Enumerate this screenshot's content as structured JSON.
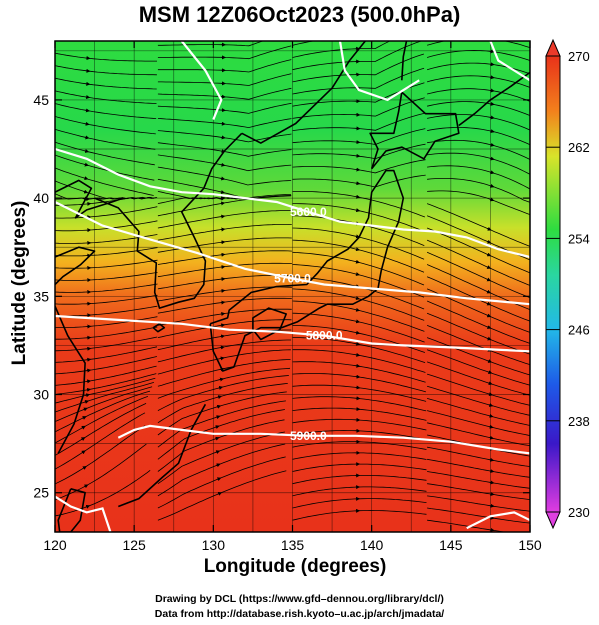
{
  "title": "MSM 12Z06Oct2023 (500.0hPa)",
  "x_axis": {
    "label": "Longitude (degrees)",
    "range": [
      120,
      150
    ],
    "ticks": [
      "120",
      "125",
      "130",
      "135",
      "140",
      "145",
      "150"
    ]
  },
  "y_axis": {
    "label": "Latitude  (degrees)",
    "range": [
      23,
      48
    ],
    "ticks": [
      "25",
      "30",
      "35",
      "40",
      "45"
    ]
  },
  "colorbar": {
    "range": [
      230,
      270
    ],
    "ticks": [
      "270",
      "262",
      "254",
      "246",
      "238",
      "230"
    ]
  },
  "contours": [
    {
      "label": "5600.0",
      "points": [
        [
          120,
          42.5
        ],
        [
          122,
          42.0
        ],
        [
          124,
          41.2
        ],
        [
          126,
          40.6
        ],
        [
          128,
          40.3
        ],
        [
          130,
          40.2
        ],
        [
          132,
          40.0
        ],
        [
          134,
          39.8
        ],
        [
          136,
          39.3
        ],
        [
          138,
          38.8
        ],
        [
          140,
          38.6
        ],
        [
          142,
          38.4
        ],
        [
          144,
          38.3
        ],
        [
          146,
          38.0
        ],
        [
          148,
          37.4
        ],
        [
          150,
          37.0
        ]
      ]
    },
    {
      "label": "5700.0",
      "points": [
        [
          120,
          39.8
        ],
        [
          123,
          38.6
        ],
        [
          126,
          37.9
        ],
        [
          129,
          37.2
        ],
        [
          132,
          36.4
        ],
        [
          135,
          35.9
        ],
        [
          137,
          35.6
        ],
        [
          140,
          35.4
        ],
        [
          143,
          35.2
        ],
        [
          146,
          34.9
        ],
        [
          150,
          34.6
        ]
      ]
    },
    {
      "label": "5800.0",
      "points": [
        [
          120,
          34.0
        ],
        [
          124,
          33.8
        ],
        [
          128,
          33.6
        ],
        [
          131,
          33.3
        ],
        [
          134,
          33.2
        ],
        [
          137,
          33.0
        ],
        [
          140,
          32.6
        ],
        [
          142,
          32.5
        ],
        [
          145,
          32.4
        ],
        [
          150,
          32.2
        ]
      ]
    },
    {
      "label": "5900.0",
      "points": [
        [
          124,
          27.8
        ],
        [
          125,
          28.2
        ],
        [
          126,
          28.4
        ],
        [
          128,
          28.2
        ],
        [
          130,
          28.0
        ],
        [
          133,
          28.0
        ],
        [
          136,
          27.9
        ],
        [
          139,
          27.9
        ],
        [
          142,
          27.8
        ],
        [
          145,
          27.6
        ],
        [
          148,
          27.2
        ],
        [
          150,
          27.0
        ]
      ]
    }
  ],
  "contours_secondary": [
    {
      "points": [
        [
          128,
          48
        ],
        [
          129.5,
          46.5
        ],
        [
          130.5,
          45.0
        ],
        [
          130,
          44.0
        ]
      ]
    },
    {
      "points": [
        [
          138,
          48
        ],
        [
          138.3,
          46.5
        ],
        [
          139.2,
          45.5
        ],
        [
          141,
          45.0
        ],
        [
          143,
          46.0
        ]
      ]
    },
    {
      "points": [
        [
          147.5,
          48
        ],
        [
          148.0,
          47.0
        ],
        [
          149.0,
          46.5
        ],
        [
          150,
          46.0
        ]
      ]
    },
    {
      "points": [
        [
          120,
          24.8
        ],
        [
          121.0,
          24.3
        ],
        [
          122.0,
          24.0
        ],
        [
          123.0,
          24.2
        ],
        [
          123.5,
          23
        ]
      ]
    },
    {
      "points": [
        [
          146,
          23.2
        ],
        [
          147.5,
          23.8
        ],
        [
          149,
          24.0
        ],
        [
          150,
          23.6
        ]
      ]
    }
  ],
  "coast": [
    {
      "name": "korea",
      "points": [
        [
          122.5,
          40.0
        ],
        [
          124.0,
          39.5
        ],
        [
          125.3,
          38.3
        ],
        [
          125.2,
          37.3
        ],
        [
          126.4,
          36.7
        ],
        [
          126.3,
          35.2
        ],
        [
          126.6,
          34.4
        ],
        [
          127.8,
          34.7
        ],
        [
          128.8,
          34.9
        ],
        [
          129.4,
          35.6
        ],
        [
          129.5,
          36.8
        ],
        [
          128.8,
          38.0
        ],
        [
          128.0,
          39.3
        ],
        [
          129.4,
          40.5
        ],
        [
          129.9,
          41.5
        ],
        [
          130.7,
          42.4
        ],
        [
          131.8,
          43.3
        ]
      ]
    },
    {
      "name": "china-coast",
      "points": [
        [
          120.0,
          34.5
        ],
        [
          120.8,
          33.0
        ],
        [
          121.9,
          31.6
        ],
        [
          121.8,
          30.0
        ],
        [
          121.2,
          28.5
        ],
        [
          120.2,
          27.0
        ]
      ]
    },
    {
      "name": "shandong",
      "points": [
        [
          120.0,
          37.0
        ],
        [
          121.5,
          37.5
        ],
        [
          122.5,
          37.3
        ],
        [
          121.6,
          36.6
        ],
        [
          120.5,
          36.0
        ],
        [
          120.0,
          35.6
        ]
      ]
    },
    {
      "name": "liaodong",
      "points": [
        [
          120.0,
          40.3
        ],
        [
          121.5,
          40.9
        ],
        [
          122.3,
          40.5
        ],
        [
          121.3,
          39.0
        ],
        [
          122.0,
          39.4
        ],
        [
          123.6,
          39.8
        ],
        [
          124.3,
          40.0
        ]
      ]
    },
    {
      "name": "russia-coast",
      "points": [
        [
          131.8,
          43.3
        ],
        [
          133.0,
          42.8
        ],
        [
          135.2,
          43.8
        ],
        [
          137.5,
          45.6
        ],
        [
          138.6,
          47.0
        ],
        [
          139.6,
          48.0
        ]
      ]
    },
    {
      "name": "honshu-kyushu",
      "points": [
        [
          129.8,
          33.6
        ],
        [
          130.0,
          32.2
        ],
        [
          130.6,
          31.2
        ],
        [
          131.3,
          31.4
        ],
        [
          132.0,
          33.0
        ],
        [
          133.0,
          33.4
        ],
        [
          134.3,
          33.4
        ],
        [
          135.3,
          33.7
        ],
        [
          136.7,
          34.4
        ],
        [
          137.2,
          34.6
        ],
        [
          138.8,
          34.6
        ],
        [
          139.8,
          35.0
        ],
        [
          140.4,
          35.4
        ],
        [
          140.6,
          36.3
        ],
        [
          141.0,
          37.5
        ],
        [
          141.7,
          38.8
        ],
        [
          142.0,
          40.0
        ],
        [
          141.4,
          41.4
        ],
        [
          140.9,
          41.4
        ],
        [
          140.0,
          40.3
        ],
        [
          139.8,
          39.0
        ],
        [
          139.2,
          38.0
        ],
        [
          138.5,
          37.4
        ],
        [
          137.2,
          36.8
        ],
        [
          136.6,
          36.2
        ],
        [
          135.9,
          35.6
        ],
        [
          134.0,
          35.5
        ],
        [
          132.4,
          35.2
        ],
        [
          131.0,
          34.3
        ],
        [
          130.9,
          33.9
        ],
        [
          129.8,
          33.6
        ]
      ]
    },
    {
      "name": "hokkaido",
      "points": [
        [
          140.0,
          41.5
        ],
        [
          140.4,
          42.5
        ],
        [
          139.9,
          43.3
        ],
        [
          141.4,
          43.3
        ],
        [
          141.7,
          44.4
        ],
        [
          141.9,
          45.4
        ],
        [
          143.4,
          44.3
        ],
        [
          145.3,
          44.3
        ],
        [
          145.5,
          43.3
        ],
        [
          144.0,
          42.9
        ],
        [
          143.3,
          42.0
        ],
        [
          141.9,
          42.6
        ],
        [
          140.9,
          42.4
        ],
        [
          140.0,
          41.5
        ]
      ]
    },
    {
      "name": "sakhalin",
      "points": [
        [
          141.9,
          46.0
        ],
        [
          142.0,
          47.2
        ],
        [
          142.2,
          48.0
        ]
      ]
    },
    {
      "name": "shikoku",
      "points": [
        [
          132.5,
          33.3
        ],
        [
          133.0,
          32.8
        ],
        [
          134.2,
          33.3
        ],
        [
          134.6,
          34.1
        ],
        [
          133.5,
          34.4
        ],
        [
          132.5,
          33.9
        ],
        [
          132.5,
          33.3
        ]
      ]
    },
    {
      "name": "taiwan",
      "points": [
        [
          121.0,
          25.2
        ],
        [
          121.9,
          25.0
        ],
        [
          121.6,
          23.6
        ],
        [
          121.0,
          23.0
        ],
        [
          120.3,
          23.0
        ],
        [
          120.2,
          23.6
        ],
        [
          121.0,
          25.2
        ]
      ]
    },
    {
      "name": "ryukyu",
      "points": [
        [
          129.5,
          29.5
        ],
        [
          128.6,
          28.2
        ],
        [
          127.8,
          26.5
        ],
        [
          126.8,
          25.8
        ],
        [
          125.3,
          24.7
        ],
        [
          124.0,
          24.3
        ]
      ]
    },
    {
      "name": "jeju",
      "points": [
        [
          126.2,
          33.4
        ],
        [
          126.6,
          33.6
        ],
        [
          126.9,
          33.4
        ],
        [
          126.5,
          33.2
        ],
        [
          126.2,
          33.4
        ]
      ]
    },
    {
      "name": "kurils",
      "points": [
        [
          145.5,
          43.7
        ],
        [
          146.5,
          44.3
        ],
        [
          147.5,
          45.0
        ],
        [
          148.8,
          45.7
        ],
        [
          150.0,
          46.4
        ]
      ]
    }
  ],
  "footer": {
    "line1": "Drawing by DCL (https://www.gfd–dennou.org/library/dcl/)",
    "line2": "Data from http://database.rish.kyoto–u.ac.jp/arch/jmadata/"
  }
}
